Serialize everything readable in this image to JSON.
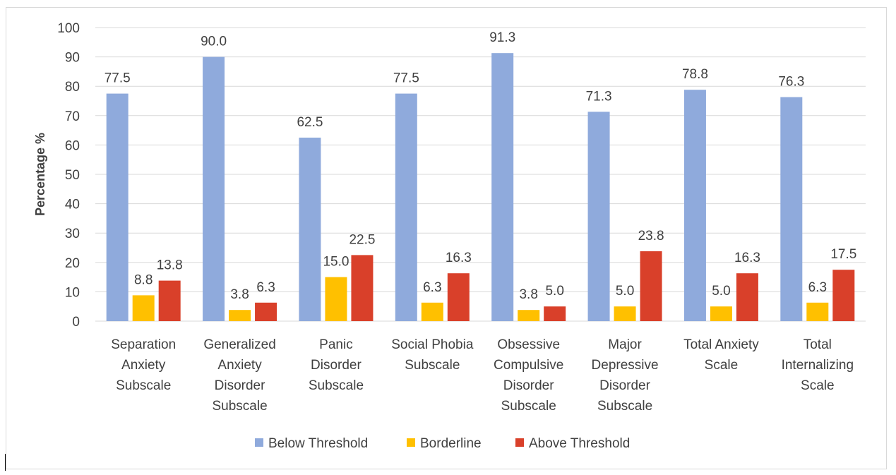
{
  "chart_data": {
    "type": "bar",
    "title": "",
    "xlabel": "",
    "ylabel": "Percentage %",
    "ylim": [
      0,
      100
    ],
    "yticks": [
      0,
      10,
      20,
      30,
      40,
      50,
      60,
      70,
      80,
      90,
      100
    ],
    "grid": true,
    "legend_position": "bottom",
    "categories": [
      [
        "Separation",
        "Anxiety",
        "Subscale"
      ],
      [
        "Generalized",
        "Anxiety",
        "Disorder",
        "Subscale"
      ],
      [
        "Panic",
        "Disorder",
        "Subscale"
      ],
      [
        "Social Phobia",
        "Subscale"
      ],
      [
        "Obsessive",
        "Compulsive",
        "Disorder",
        "Subscale"
      ],
      [
        "Major",
        "Depressive",
        "Disorder",
        "Subscale"
      ],
      [
        "Total Anxiety",
        "Scale"
      ],
      [
        "Total",
        "Internalizing",
        "Scale"
      ]
    ],
    "series": [
      {
        "name": "Below Threshold",
        "color": "#8faadc",
        "values": [
          77.5,
          90.0,
          62.5,
          77.5,
          91.3,
          71.3,
          78.8,
          76.3
        ]
      },
      {
        "name": "Borderline",
        "color": "#ffc000",
        "values": [
          8.8,
          3.8,
          15.0,
          6.3,
          3.8,
          5.0,
          5.0,
          6.3
        ]
      },
      {
        "name": "Above Threshold",
        "color": "#d9402a",
        "values": [
          13.8,
          6.3,
          22.5,
          16.3,
          5.0,
          23.8,
          16.3,
          17.5
        ]
      }
    ],
    "gridline_color": "#d9d9d9",
    "text_color": "#404040"
  }
}
